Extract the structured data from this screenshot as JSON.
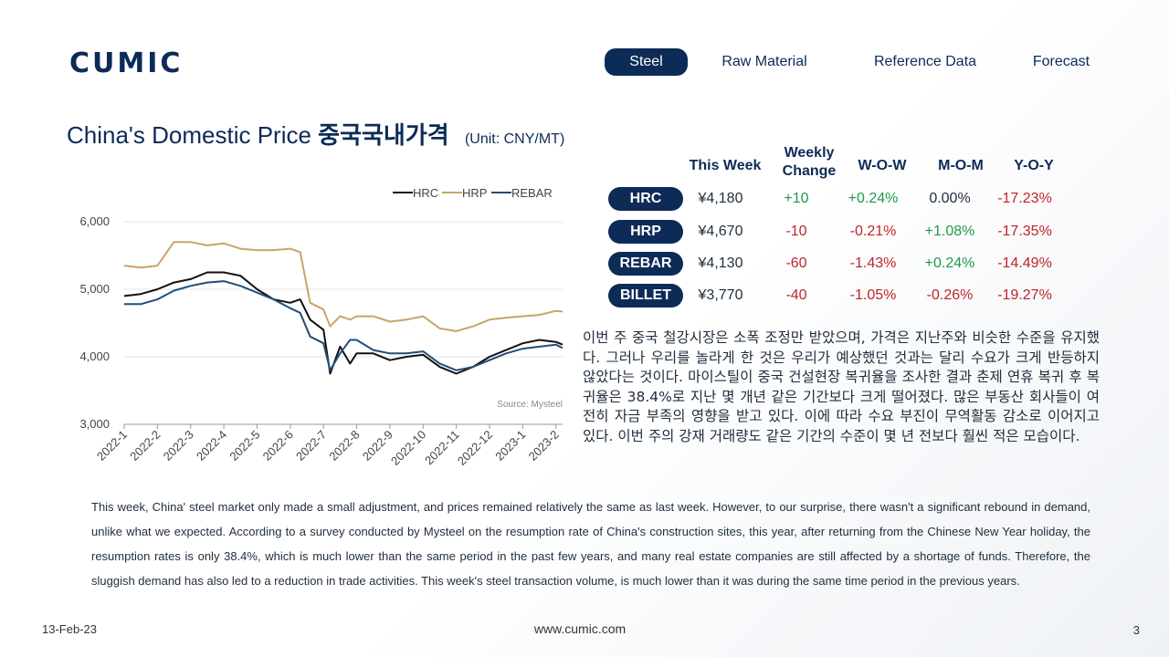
{
  "brand": {
    "logo_text": "CUMIC"
  },
  "nav": {
    "items": [
      "Steel",
      "Raw Material",
      "Reference Data",
      "Forecast"
    ],
    "active": "Steel"
  },
  "header": {
    "title_en": "China's Domestic Price",
    "title_ko": "중국국내가격",
    "unit": "(Unit: CNY/MT)"
  },
  "table": {
    "columns": [
      "This Week",
      "Weekly Change",
      "W-O-W",
      "M-O-M",
      "Y-O-Y"
    ],
    "rows": [
      {
        "product": "HRC",
        "this_week": "¥4,180",
        "weekly_change": "+10",
        "wow": "+0.24%",
        "mom": "0.00%",
        "yoy": "-17.23%"
      },
      {
        "product": "HRP",
        "this_week": "¥4,670",
        "weekly_change": "-10",
        "wow": "-0.21%",
        "mom": "+1.08%",
        "yoy": "-17.35%"
      },
      {
        "product": "REBAR",
        "this_week": "¥4,130",
        "weekly_change": "-60",
        "wow": "-1.43%",
        "mom": "+0.24%",
        "yoy": "-14.49%"
      },
      {
        "product": "BILLET",
        "this_week": "¥3,770",
        "weekly_change": "-40",
        "wow": "-1.05%",
        "mom": "-0.26%",
        "yoy": "-19.27%"
      }
    ]
  },
  "colors": {
    "navy": "#0d2b57",
    "positive": "#1f9a4a",
    "negative": "#c0232b",
    "hrc": "#111111",
    "hrp": "#c9a46a",
    "rebar": "#1f4e79"
  },
  "chart_data": {
    "type": "line",
    "title": "",
    "source": "Source: Mysteel",
    "legend_position": "top",
    "grid": "horizontal",
    "ylim": [
      3000,
      6000
    ],
    "yticks": [
      "3,000",
      "4,000",
      "5,000",
      "6,000"
    ],
    "xticks": [
      "2022-1",
      "2022-2",
      "2022-3",
      "2022-4",
      "2022-5",
      "2022-6",
      "2022-7",
      "2022-8",
      "2022-9",
      "2022-10",
      "2022-11",
      "2022-12",
      "2023-1",
      "2023-2"
    ],
    "x": [
      1,
      1.5,
      2,
      2.5,
      3,
      3.5,
      4,
      4.5,
      5,
      5.5,
      6,
      6.3,
      6.6,
      7,
      7.2,
      7.5,
      7.8,
      8,
      8.5,
      9,
      9.5,
      10,
      10.5,
      11,
      11.5,
      12,
      12.5,
      13,
      13.5,
      14,
      14.2
    ],
    "series": [
      {
        "name": "HRC",
        "values": [
          4900,
          4930,
          5000,
          5100,
          5150,
          5250,
          5250,
          5200,
          5000,
          4850,
          4800,
          4850,
          4550,
          4400,
          3750,
          4150,
          3900,
          4050,
          4050,
          3950,
          4000,
          4030,
          3850,
          3750,
          3850,
          4000,
          4100,
          4200,
          4250,
          4220,
          4180
        ]
      },
      {
        "name": "HRP",
        "values": [
          5350,
          5320,
          5350,
          5700,
          5700,
          5650,
          5680,
          5600,
          5580,
          5580,
          5600,
          5550,
          4800,
          4700,
          4450,
          4600,
          4550,
          4600,
          4600,
          4520,
          4550,
          4600,
          4420,
          4380,
          4450,
          4550,
          4580,
          4600,
          4620,
          4680,
          4670
        ]
      },
      {
        "name": "REBAR",
        "values": [
          4780,
          4780,
          4850,
          4980,
          5050,
          5100,
          5120,
          5050,
          4950,
          4850,
          4720,
          4650,
          4300,
          4200,
          3800,
          4050,
          4250,
          4250,
          4100,
          4050,
          4050,
          4080,
          3900,
          3800,
          3850,
          3950,
          4050,
          4120,
          4150,
          4180,
          4130
        ]
      }
    ]
  },
  "commentary": {
    "ko": "이번 주 중국 철강시장은 소폭 조정만 받았으며, 가격은 지난주와 비슷한 수준을 유지했다. 그러나 우리를 놀라게 한 것은 우리가 예상했던 것과는 달리 수요가 크게 반등하지 않았다는 것이다. 마이스틸이 중국 건설현장 복귀율을 조사한 결과 춘제 연휴 복귀 후 복귀율은 38.4%로 지난 몇 개년 같은 기간보다 크게 떨어졌다. 많은 부동산 회사들이 여전히 자금 부족의 영향을 받고 있다. 이에 따라 수요 부진이 무역활동 감소로 이어지고 있다. 이번 주의 강재 거래량도 같은 기간의 수준이 몇 년 전보다 훨씬 적은 모습이다.",
    "en": "This week, China' steel market only made a small adjustment, and prices remained relatively the same as last week. However, to our surprise, there wasn't a significant rebound in demand, unlike what we expected. According to a survey conducted by Mysteel on the resumption rate of China's construction sites, this year, after returning from the Chinese New Year holiday, the resumption rates is only 38.4%, which is much lower than the same period in the past few years, and many real estate companies are still affected by a shortage of funds. Therefore, the sluggish demand has also led to a reduction in trade activities. This week's steel transaction volume, is much lower than it was during the same time period in the previous years."
  },
  "footer": {
    "date": "13-Feb-23",
    "website": "www.cumic.com",
    "page": "3"
  }
}
